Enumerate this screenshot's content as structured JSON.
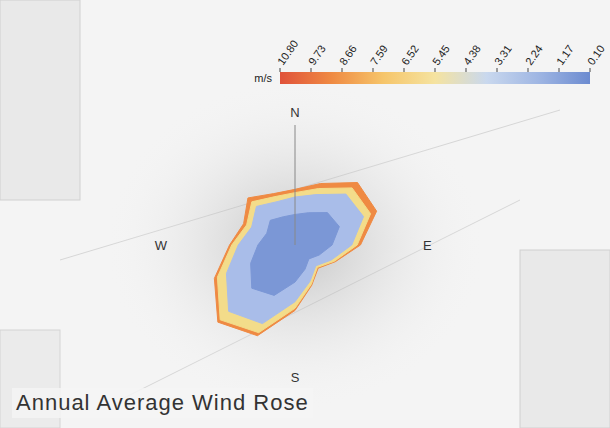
{
  "chart_data": {
    "type": "radar",
    "title": "Annual Average Wind Rose",
    "stacked": true,
    "grid": false,
    "tick_labels": "x",
    "categories": [
      "N",
      null,
      null,
      null,
      "E",
      null,
      null,
      null,
      "S",
      null,
      null,
      null,
      "W",
      null,
      null,
      null
    ],
    "ylim": [
      0,
      11
    ],
    "series": [
      {
        "color": "#7b97d6",
        "values": [
          2.8,
          3.2,
          4.2,
          4.4,
          3.4,
          2.4,
          1.8,
          2.4,
          3.4,
          5.0,
          5.6,
          4.4,
          3.4,
          2.8,
          3.2,
          2.8
        ]
      },
      {
        "color": "#a9bde9",
        "values": [
          1.6,
          1.8,
          2.4,
          2.4,
          1.8,
          1.2,
          0.9,
          1.2,
          1.8,
          2.8,
          3.0,
          2.4,
          1.8,
          1.5,
          1.8,
          1.5
        ]
      },
      {
        "color": "#f3dc8a",
        "values": [
          0.4,
          0.6,
          0.8,
          0.7,
          0.5,
          0.3,
          0.2,
          0.3,
          0.6,
          0.9,
          1.1,
          0.9,
          0.6,
          0.5,
          0.6,
          0.5
        ]
      },
      {
        "color": "#ef8a43",
        "values": [
          0.3,
          0.5,
          0.7,
          0.6,
          0.3,
          0.1,
          0.1,
          0.1,
          0.2,
          0.3,
          0.3,
          0.3,
          0.2,
          0.3,
          0.5,
          0.3
        ]
      }
    ],
    "colorbar": {
      "label": "m/s",
      "range": [
        0.1,
        10.8
      ],
      "ticks": [
        {
          "value": 10.8,
          "label": "10.80"
        },
        9.73,
        8.66,
        7.59,
        6.52,
        5.45,
        4.38,
        3.31,
        2.24,
        1.17,
        {
          "value": 0.1,
          "label": "0.10"
        }
      ],
      "colors": [
        "#6c8bd0",
        "#9fb6e3",
        "#c9d8ee",
        "#f5e3a0",
        "#f6c56a",
        "#ef8a43",
        "#e0523a"
      ]
    }
  }
}
